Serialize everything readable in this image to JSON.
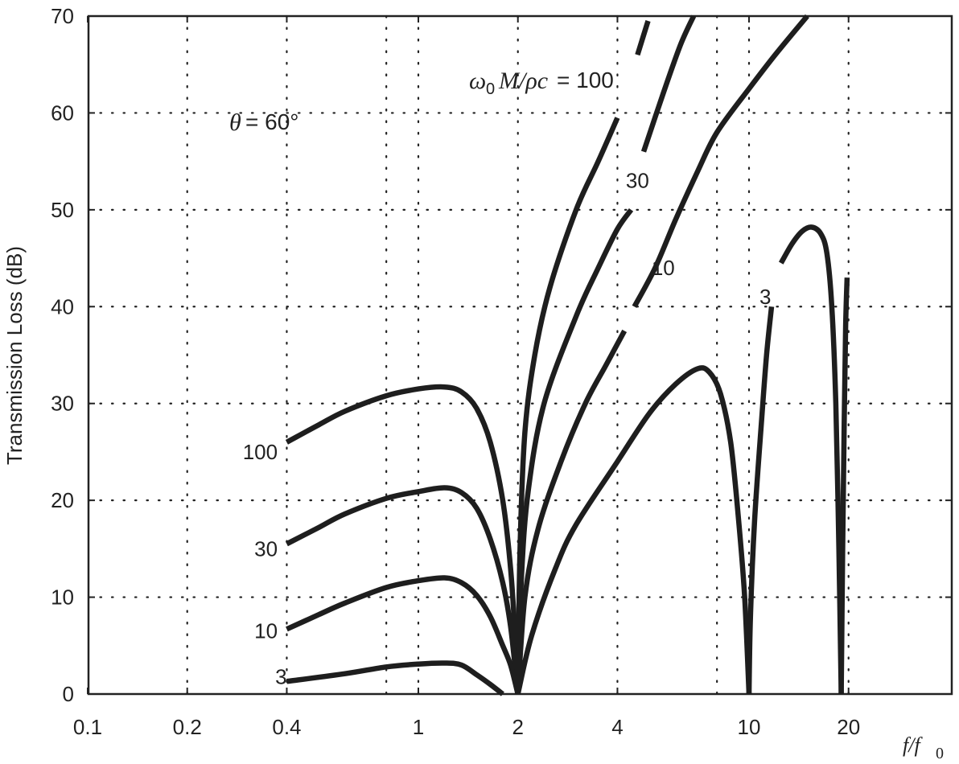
{
  "chart_data": {
    "type": "line",
    "title": "",
    "xlabel": "f/f0",
    "ylabel": "Transmission Loss (dB)",
    "xscale": "log",
    "xlim": [
      0.1,
      41
    ],
    "ylim": [
      0,
      70
    ],
    "grid": true,
    "x_ticks": [
      0.1,
      0.2,
      0.4,
      1,
      2,
      4,
      10,
      20
    ],
    "x_tick_labels": [
      "0.1",
      "0.2",
      "0.4",
      "1",
      "2",
      "4",
      "10",
      "20"
    ],
    "x_gridlines": [
      0.2,
      0.4,
      0.8,
      1,
      2,
      4,
      8,
      10,
      20
    ],
    "y_ticks": [
      0,
      10,
      20,
      30,
      40,
      50,
      60,
      70
    ],
    "y_tick_labels": [
      "0",
      "10",
      "20",
      "30",
      "40",
      "50",
      "60",
      "70"
    ],
    "annotations": [
      {
        "text": "θ = 60°",
        "x": 0.23,
        "y": 59
      },
      {
        "text": "ω0 M/ρc = 100",
        "x": 1.35,
        "y": 63
      }
    ],
    "series": [
      {
        "name": "100",
        "label_left": {
          "text": "100",
          "x": 0.3,
          "y": 25
        },
        "segments": [
          [
            [
              0.4,
              26
            ],
            [
              0.5,
              27.8
            ],
            [
              0.6,
              29.2
            ],
            [
              0.8,
              30.8
            ],
            [
              1.0,
              31.5
            ],
            [
              1.2,
              31.7
            ],
            [
              1.35,
              31.2
            ],
            [
              1.5,
              29.5
            ],
            [
              1.65,
              26
            ],
            [
              1.8,
              20
            ],
            [
              1.9,
              13
            ],
            [
              1.97,
              5
            ],
            [
              2.0,
              0
            ]
          ],
          [
            [
              2.0,
              0
            ],
            [
              2.03,
              15
            ],
            [
              2.1,
              27
            ],
            [
              2.25,
              35
            ],
            [
              2.5,
              42
            ],
            [
              3.0,
              50
            ],
            [
              3.5,
              55
            ],
            [
              4.0,
              59.5
            ]
          ],
          [
            [
              4.6,
              66
            ],
            [
              4.95,
              69.5
            ]
          ]
        ]
      },
      {
        "name": "30",
        "label_left": {
          "text": "30",
          "x": 0.3,
          "y": 15
        },
        "label_right": {
          "text": "30",
          "x": 4.6,
          "y": 53
        },
        "segments": [
          [
            [
              0.4,
              15.5
            ],
            [
              0.5,
              17.2
            ],
            [
              0.6,
              18.6
            ],
            [
              0.8,
              20.2
            ],
            [
              1.0,
              20.9
            ],
            [
              1.2,
              21.3
            ],
            [
              1.35,
              20.8
            ],
            [
              1.5,
              19.2
            ],
            [
              1.65,
              16
            ],
            [
              1.8,
              11.5
            ],
            [
              1.9,
              7
            ],
            [
              2.0,
              0
            ]
          ],
          [
            [
              2.0,
              0
            ],
            [
              2.05,
              12
            ],
            [
              2.15,
              21
            ],
            [
              2.4,
              30
            ],
            [
              3.0,
              39
            ],
            [
              3.5,
              44
            ],
            [
              4.0,
              48
            ],
            [
              4.4,
              50
            ]
          ],
          [
            [
              4.8,
              56
            ],
            [
              5.5,
              62
            ],
            [
              6.2,
              67
            ],
            [
              6.8,
              70
            ]
          ]
        ]
      },
      {
        "name": "10",
        "label_left": {
          "text": "10",
          "x": 0.3,
          "y": 6.5
        },
        "label_right": {
          "text": "10",
          "x": 5.5,
          "y": 44
        },
        "segments": [
          [
            [
              0.4,
              6.7
            ],
            [
              0.5,
              8.2
            ],
            [
              0.6,
              9.4
            ],
            [
              0.8,
              11
            ],
            [
              1.0,
              11.7
            ],
            [
              1.2,
              12
            ],
            [
              1.35,
              11.5
            ],
            [
              1.5,
              10.2
            ],
            [
              1.65,
              8
            ],
            [
              1.8,
              5
            ],
            [
              1.9,
              3
            ],
            [
              2.0,
              0
            ]
          ],
          [
            [
              2.0,
              0
            ],
            [
              2.1,
              10
            ],
            [
              2.3,
              17
            ],
            [
              2.7,
              24
            ],
            [
              3.2,
              30
            ],
            [
              3.7,
              34
            ],
            [
              4.2,
              37.5
            ]
          ],
          [
            [
              4.5,
              40
            ],
            [
              5.2,
              44
            ],
            [
              6.0,
              49
            ],
            [
              7.0,
              54
            ],
            [
              8.0,
              58
            ],
            [
              10.0,
              62.5
            ],
            [
              12.0,
              66
            ],
            [
              15.0,
              70
            ]
          ]
        ]
      },
      {
        "name": "3",
        "label_left": {
          "text": "3",
          "x": 0.32,
          "y": 1.8
        },
        "label_right": {
          "text": "3",
          "x": 11.2,
          "y": 41
        },
        "segments": [
          [
            [
              0.4,
              1.3
            ],
            [
              0.6,
              2.1
            ],
            [
              0.8,
              2.8
            ],
            [
              1.0,
              3.1
            ],
            [
              1.2,
              3.2
            ],
            [
              1.35,
              3.0
            ],
            [
              1.5,
              2.0
            ],
            [
              1.65,
              1.0
            ],
            [
              1.8,
              0
            ]
          ],
          [
            [
              2.0,
              0
            ],
            [
              2.2,
              6
            ],
            [
              2.6,
              13
            ],
            [
              3.0,
              17.5
            ],
            [
              4.0,
              24
            ],
            [
              5.0,
              29
            ],
            [
              6.0,
              32
            ],
            [
              7.0,
              33.6
            ],
            [
              7.6,
              33.2
            ],
            [
              8.2,
              31
            ],
            [
              8.8,
              26
            ],
            [
              9.3,
              18
            ],
            [
              9.7,
              10
            ],
            [
              10.0,
              0
            ]
          ],
          [
            [
              10.0,
              0
            ],
            [
              10.1,
              8
            ],
            [
              10.4,
              18
            ],
            [
              10.9,
              28
            ],
            [
              11.3,
              35
            ],
            [
              11.7,
              40
            ]
          ],
          [
            [
              12.5,
              44.5
            ],
            [
              13.5,
              46.5
            ],
            [
              14.5,
              47.8
            ],
            [
              15.5,
              48.2
            ],
            [
              16.5,
              47.5
            ],
            [
              17.2,
              45.5
            ],
            [
              17.8,
              40
            ],
            [
              18.3,
              30
            ],
            [
              18.7,
              15
            ],
            [
              19.0,
              0
            ]
          ],
          [
            [
              19.0,
              0
            ],
            [
              19.2,
              15
            ],
            [
              19.4,
              28
            ],
            [
              19.6,
              38
            ],
            [
              19.8,
              43
            ]
          ]
        ]
      }
    ]
  }
}
